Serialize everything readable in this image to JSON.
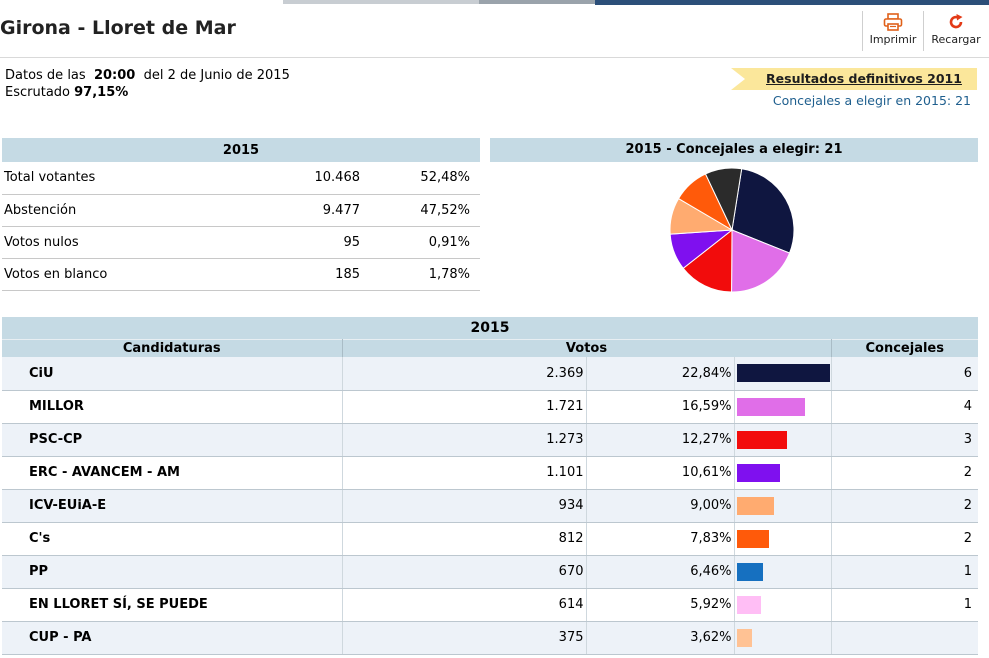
{
  "header": {
    "title": "Girona - Lloret de Mar",
    "print_label": "Imprimir",
    "reload_label": "Recargar"
  },
  "info": {
    "datos_prefix": "Datos de las",
    "time": "20:00",
    "date_text": "del 2 de Junio de 2015",
    "escrutado_label": "Escrutado",
    "escrutado_value": "97,15%"
  },
  "ribbon": {
    "label": "Resultados definitivos 2011",
    "concejales_text": "Concejales a elegir en 2015: 21"
  },
  "summary": {
    "year": "2015",
    "rows": [
      {
        "label": "Total votantes",
        "value": "10.468",
        "pct": "52,48%"
      },
      {
        "label": "Abstención",
        "value": "9.477",
        "pct": "47,52%"
      },
      {
        "label": "Votos nulos",
        "value": "95",
        "pct": "0,91%"
      },
      {
        "label": "Votos en blanco",
        "value": "185",
        "pct": "1,78%"
      }
    ]
  },
  "chart_data": {
    "type": "pie",
    "title": "2015 - Concejales a elegir: 21",
    "slices": [
      {
        "name": "CiU",
        "value": 6,
        "color": "#0f1640"
      },
      {
        "name": "MILLOR",
        "value": 4,
        "color": "#e06ee8"
      },
      {
        "name": "PSC-CP",
        "value": 3,
        "color": "#f20c0c"
      },
      {
        "name": "ERC - AVANCEM - AM",
        "value": 2,
        "color": "#7f10ef"
      },
      {
        "name": "ICV-EUiA-E",
        "value": 2,
        "color": "#ffab70"
      },
      {
        "name": "C's",
        "value": 2,
        "color": "#ff5a0a"
      },
      {
        "name": "Other",
        "value": 2,
        "color": "#2b2b2b"
      }
    ]
  },
  "results": {
    "year": "2015",
    "headers": {
      "party": "Candidaturas",
      "votes": "Votos",
      "seats": "Concejales"
    },
    "rows": [
      {
        "party": "CiU",
        "votes": "2.369",
        "pct": "22,84%",
        "pct_value": 22.84,
        "seats": "6",
        "color": "#0f1640"
      },
      {
        "party": "MILLOR",
        "votes": "1.721",
        "pct": "16,59%",
        "pct_value": 16.59,
        "seats": "4",
        "color": "#e06ee8"
      },
      {
        "party": "PSC-CP",
        "votes": "1.273",
        "pct": "12,27%",
        "pct_value": 12.27,
        "seats": "3",
        "color": "#f20c0c"
      },
      {
        "party": "ERC - AVANCEM - AM",
        "votes": "1.101",
        "pct": "10,61%",
        "pct_value": 10.61,
        "seats": "2",
        "color": "#7f10ef"
      },
      {
        "party": "ICV-EUiA-E",
        "votes": "934",
        "pct": "9,00%",
        "pct_value": 9.0,
        "seats": "2",
        "color": "#ffab70"
      },
      {
        "party": "C's",
        "votes": "812",
        "pct": "7,83%",
        "pct_value": 7.83,
        "seats": "2",
        "color": "#ff5a0a"
      },
      {
        "party": "PP",
        "votes": "670",
        "pct": "6,46%",
        "pct_value": 6.46,
        "seats": "1",
        "color": "#1670c0"
      },
      {
        "party": "EN LLORET SÍ, SE PUEDE",
        "votes": "614",
        "pct": "5,92%",
        "pct_value": 5.92,
        "seats": "1",
        "color": "#ffbef5"
      },
      {
        "party": "CUP - PA",
        "votes": "375",
        "pct": "3,62%",
        "pct_value": 3.62,
        "seats": "",
        "color": "#ffc294"
      }
    ]
  }
}
